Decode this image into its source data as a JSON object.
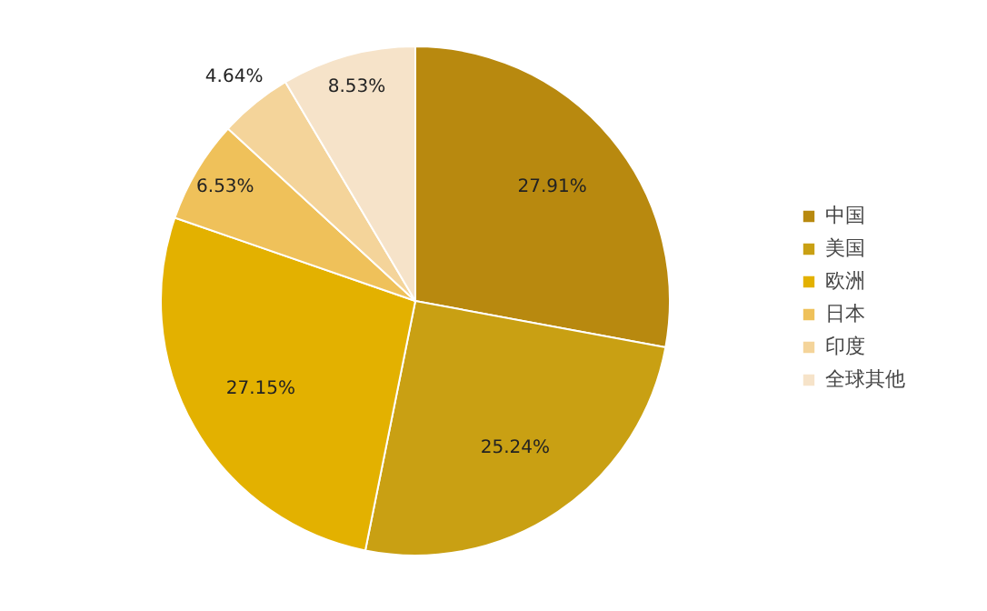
{
  "chart_data": {
    "type": "pie",
    "categories": [
      "中国",
      "美国",
      "欧洲",
      "日本",
      "印度",
      "全球其他"
    ],
    "values": [
      27.91,
      25.24,
      27.15,
      6.53,
      4.64,
      8.53
    ],
    "value_labels": [
      "27.91%",
      "25.24%",
      "27.15%",
      "6.53%",
      "4.64%",
      "8.53%"
    ],
    "colors": [
      "#b8890f",
      "#c9a013",
      "#e3b100",
      "#efc15a",
      "#f4d49a",
      "#f6e3c9"
    ],
    "legend": "right"
  }
}
